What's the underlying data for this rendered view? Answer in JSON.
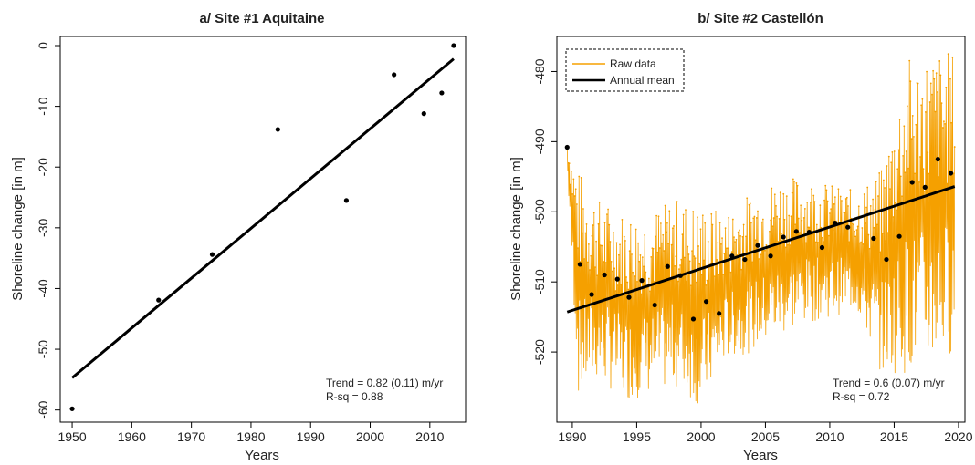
{
  "chart_data": [
    {
      "type": "scatter",
      "title": "a/ Site #1 Aquitaine",
      "xlabel": "Years",
      "ylabel": "Shoreline change [in m]",
      "xlim": [
        1948,
        2016
      ],
      "ylim": [
        -62,
        1.5
      ],
      "xticks": [
        1950,
        1960,
        1970,
        1980,
        1990,
        2000,
        2010
      ],
      "yticks": [
        0,
        -10,
        -20,
        -30,
        -40,
        -50,
        -60
      ],
      "points": [
        {
          "x": 1950,
          "y": -59.8
        },
        {
          "x": 1964.5,
          "y": -41.9
        },
        {
          "x": 1973.5,
          "y": -34.4
        },
        {
          "x": 1984.5,
          "y": -13.8
        },
        {
          "x": 1996,
          "y": -25.5
        },
        {
          "x": 2004,
          "y": -4.8
        },
        {
          "x": 2009,
          "y": -11.2
        },
        {
          "x": 2012,
          "y": -7.8
        },
        {
          "x": 2014,
          "y": 0
        }
      ],
      "trend_line": [
        {
          "x": 1950,
          "y": -54.7
        },
        {
          "x": 2014,
          "y": -2.2
        }
      ],
      "annotations": [
        "Trend = 0.82 (0.11) m/yr",
        "R-sq = 0.88"
      ],
      "colors": {
        "points": "#000000",
        "line": "#000000"
      }
    },
    {
      "type": "line",
      "title": "b/ Site #2 Castellón",
      "xlabel": "Years",
      "ylabel": "Shoreline change [in m]",
      "xlim": [
        1988.8,
        2020.5
      ],
      "ylim": [
        -530,
        -475
      ],
      "xticks": [
        1990,
        1995,
        2000,
        2005,
        2010,
        2015,
        2020
      ],
      "yticks": [
        -480,
        -490,
        -500,
        -510,
        -520
      ],
      "legend": {
        "position": "top-left",
        "entries": [
          "Raw data",
          "Annual mean"
        ]
      },
      "raw_data_envelope": [
        {
          "x": 1989.6,
          "lo": -494,
          "hi": -490
        },
        {
          "x": 1990.5,
          "lo": -527,
          "hi": -494
        },
        {
          "x": 1992,
          "lo": -524,
          "hi": -498
        },
        {
          "x": 1994,
          "lo": -527,
          "hi": -500
        },
        {
          "x": 1996,
          "lo": -526,
          "hi": -500
        },
        {
          "x": 1998,
          "lo": -525,
          "hi": -498
        },
        {
          "x": 2000,
          "lo": -528,
          "hi": -499
        },
        {
          "x": 2002,
          "lo": -521,
          "hi": -500
        },
        {
          "x": 2004,
          "lo": -520,
          "hi": -497
        },
        {
          "x": 2006,
          "lo": -518,
          "hi": -495
        },
        {
          "x": 2008,
          "lo": -516,
          "hi": -495
        },
        {
          "x": 2010,
          "lo": -515,
          "hi": -496
        },
        {
          "x": 2012,
          "lo": -514,
          "hi": -497
        },
        {
          "x": 2014,
          "lo": -523,
          "hi": -494
        },
        {
          "x": 2016,
          "lo": -523,
          "hi": -478
        },
        {
          "x": 2018,
          "lo": -522,
          "hi": -477
        },
        {
          "x": 2019.7,
          "lo": -520,
          "hi": -477
        }
      ],
      "annual_mean_points": [
        {
          "x": 1989.6,
          "y": -490.8
        },
        {
          "x": 1990.6,
          "y": -507.5
        },
        {
          "x": 1991.5,
          "y": -511.8
        },
        {
          "x": 1992.5,
          "y": -509.0
        },
        {
          "x": 1993.5,
          "y": -509.6
        },
        {
          "x": 1994.4,
          "y": -512.2
        },
        {
          "x": 1995.4,
          "y": -509.8
        },
        {
          "x": 1996.4,
          "y": -513.3
        },
        {
          "x": 1997.4,
          "y": -507.8
        },
        {
          "x": 1998.4,
          "y": -509.1
        },
        {
          "x": 1999.4,
          "y": -515.3
        },
        {
          "x": 2000.4,
          "y": -512.8
        },
        {
          "x": 2001.4,
          "y": -514.5
        },
        {
          "x": 2002.4,
          "y": -506.3
        },
        {
          "x": 2003.4,
          "y": -506.8
        },
        {
          "x": 2004.4,
          "y": -504.8
        },
        {
          "x": 2005.4,
          "y": -506.3
        },
        {
          "x": 2006.4,
          "y": -503.6
        },
        {
          "x": 2007.4,
          "y": -502.8
        },
        {
          "x": 2008.4,
          "y": -502.9
        },
        {
          "x": 2009.4,
          "y": -505.1
        },
        {
          "x": 2010.4,
          "y": -501.6
        },
        {
          "x": 2011.4,
          "y": -502.2
        },
        {
          "x": 2013.4,
          "y": -503.8
        },
        {
          "x": 2014.4,
          "y": -506.8
        },
        {
          "x": 2015.4,
          "y": -503.5
        },
        {
          "x": 2016.4,
          "y": -495.8
        },
        {
          "x": 2017.4,
          "y": -496.5
        },
        {
          "x": 2018.4,
          "y": -492.5
        },
        {
          "x": 2019.4,
          "y": -494.5
        }
      ],
      "trend_line": [
        {
          "x": 1989.6,
          "y": -514.3
        },
        {
          "x": 2019.7,
          "y": -496.4
        }
      ],
      "annotations": [
        "Trend = 0.6 (0.07) m/yr",
        "R-sq = 0.72"
      ],
      "colors": {
        "raw": "#f5a000",
        "mean": "#000000"
      }
    }
  ]
}
